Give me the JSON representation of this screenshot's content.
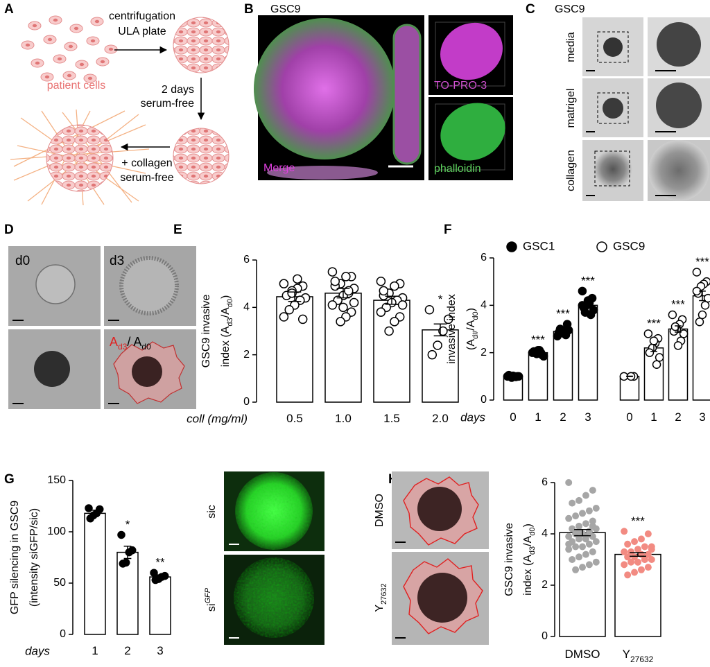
{
  "panel_labels": [
    "A",
    "B",
    "C",
    "D",
    "E",
    "F",
    "G",
    "H"
  ],
  "panel_a": {
    "step1": [
      "centrifugation",
      "ULA plate"
    ],
    "cells": "patient cells",
    "step2": [
      "2 days",
      "serum-free"
    ],
    "step3": [
      "+ collagen",
      "serum-free"
    ]
  },
  "panel_b": {
    "title": "GSC9",
    "merge": "Merge",
    "to_pro": "TO-PRO-3",
    "phalloidin": "phalloidin"
  },
  "panel_c": {
    "title": "GSC9",
    "rows": [
      "media",
      "matrigel",
      "collagen"
    ]
  },
  "panel_d": {
    "day0": "d0",
    "day3": "d3",
    "ratio": [
      "A",
      "d3",
      "/ A",
      "d0"
    ]
  },
  "panel_g_images": {
    "control": "sic",
    "silenced": [
      "si",
      "GFP"
    ]
  },
  "panel_h_images": {
    "control": "DMSO",
    "treated": [
      "Y",
      "27632"
    ]
  },
  "chart_data": [
    {
      "type": "bar",
      "y_label": "GSC9 invasive",
      "y_label_2": [
        "index (A",
        "d3",
        "/A",
        "d0",
        ")"
      ],
      "x_label": "coll (mg/ml)",
      "categories": [
        "0.5",
        "1.0",
        "1.5",
        "2.0"
      ],
      "ylim": [
        0,
        6
      ],
      "yticks": [
        0,
        2,
        4,
        6
      ],
      "series": [
        {
          "color": "#ffffff",
          "point_color": "#ffffff",
          "point_stroke": "#000000",
          "values": [
            4.45,
            4.6,
            4.3,
            3.05
          ],
          "errors": [
            0.2,
            0.2,
            0.17,
            0.25
          ],
          "annotations": [
            null,
            null,
            null,
            "*"
          ],
          "points": [
            [
              5.0,
              4.9,
              4.8,
              4.7,
              4.5,
              4.4,
              4.3,
              4.1,
              3.9,
              3.6,
              3.5,
              5.2,
              4.6
            ],
            [
              5.5,
              5.3,
              5.3,
              5.0,
              4.9,
              4.8,
              4.6,
              4.5,
              4.3,
              4.1,
              3.8,
              3.6,
              3.4,
              5.1,
              4.2,
              4.7,
              4.0
            ],
            [
              5.1,
              5.0,
              4.9,
              4.6,
              4.5,
              4.4,
              4.3,
              4.2,
              4.0,
              3.8,
              3.6,
              3.4,
              3.0,
              4.7,
              4.1
            ],
            [
              3.9,
              3.5,
              3.0,
              2.4,
              2.0
            ]
          ]
        }
      ]
    },
    {
      "type": "bar",
      "y_label": "invasive index",
      "y_label_2": [
        "(A",
        "d#",
        "/A",
        "d0",
        ")"
      ],
      "x_label": "days",
      "categories": [
        "0",
        "1",
        "2",
        "3"
      ],
      "ylim": [
        0,
        6
      ],
      "yticks": [
        0,
        2,
        4,
        6
      ],
      "series": [
        {
          "name": "GSC1",
          "color": "#ffffff",
          "point_color": "#000000",
          "point_stroke": "#000000",
          "values": [
            1,
            2,
            2.9,
            4.0
          ],
          "errors": [
            0.01,
            0.04,
            0.05,
            0.1
          ],
          "annotations": [
            null,
            "***",
            "***",
            "***"
          ],
          "points": [
            [
              1,
              1,
              1,
              0.95,
              1.05,
              1,
              0.98,
              1.02,
              1
            ],
            [
              2.0,
              1.9,
              2.1,
              1.95,
              2.05,
              1.85,
              2.0,
              2.1
            ],
            [
              2.7,
              3.2,
              2.8,
              2.9,
              2.85,
              2.95,
              2.75,
              2.9,
              3.0
            ],
            [
              4.6,
              4.3,
              4.1,
              4.0,
              3.9,
              3.8,
              3.6,
              4.2,
              3.7,
              4.0
            ]
          ]
        },
        {
          "name": "GSC9",
          "color": "#ffffff",
          "point_color": "#ffffff",
          "point_stroke": "#000000",
          "values": [
            1,
            2.2,
            3.0,
            4.4
          ],
          "errors": [
            0.01,
            0.15,
            0.13,
            0.2
          ],
          "annotations": [
            null,
            "***",
            "***",
            "***"
          ],
          "points": [
            [
              1,
              1,
              1
            ],
            [
              2.8,
              2.6,
              2.4,
              2.2,
              2.0,
              1.8,
              1.5,
              2.5
            ],
            [
              3.6,
              3.4,
              3.2,
              3.0,
              2.9,
              2.8,
              2.5,
              2.3,
              3.1
            ],
            [
              5.4,
              5.0,
              4.9,
              4.8,
              4.5,
              4.3,
              4.0,
              3.6,
              3.3,
              4.6
            ]
          ]
        }
      ]
    },
    {
      "type": "bar",
      "y_label": "GFP silencing in GSC9",
      "y_label_2": [
        "(intensity siGFP/sic)"
      ],
      "x_label": "days",
      "categories": [
        "1",
        "2",
        "3"
      ],
      "ylim": [
        0,
        150
      ],
      "yticks": [
        0,
        50,
        100,
        150
      ],
      "series": [
        {
          "color": "#ffffff",
          "point_color": "#000000",
          "point_stroke": "#000000",
          "values": [
            118,
            80,
            56
          ],
          "errors": [
            3,
            6,
            2
          ],
          "annotations": [
            null,
            "*",
            "**"
          ],
          "points": [
            [
              123,
              122,
              118,
              116,
              113
            ],
            [
              97,
              82,
              80,
              70,
              69
            ],
            [
              60,
              57,
              56,
              54,
              53
            ]
          ]
        }
      ]
    },
    {
      "type": "bar",
      "y_label": "GSC9 invasive",
      "y_label_2": [
        "index (A",
        "d3",
        "/A",
        "d0",
        ")"
      ],
      "categories": [
        "DMSO",
        "Y"
      ],
      "category_subscripts": [
        null,
        "27632"
      ],
      "ylim": [
        0,
        6
      ],
      "yticks": [
        0,
        2,
        4,
        6
      ],
      "series": [
        {
          "color": "#ffffff",
          "point_color": [
            "#a6a6a6",
            "#f28b82"
          ],
          "values": [
            4.05,
            3.2
          ],
          "errors": [
            0.12,
            0.07
          ],
          "annotations": [
            null,
            "***"
          ],
          "points": [
            [
              6.0,
              5.7,
              5.5,
              5.3,
              5.2,
              5.0,
              4.9,
              4.8,
              4.7,
              4.6,
              4.5,
              4.4,
              4.3,
              4.2,
              4.2,
              4.1,
              4.0,
              4.0,
              3.9,
              3.9,
              3.8,
              3.8,
              3.7,
              3.7,
              3.6,
              3.5,
              3.5,
              3.4,
              3.3,
              3.2,
              3.1,
              3.0,
              2.9,
              2.8,
              2.7,
              2.6,
              3.6,
              4.3,
              3.9,
              4.1
            ],
            [
              4.1,
              4.0,
              3.8,
              3.7,
              3.6,
              3.5,
              3.5,
              3.4,
              3.3,
              3.3,
              3.2,
              3.2,
              3.1,
              3.1,
              3.0,
              3.0,
              2.9,
              2.9,
              2.8,
              2.7,
              2.6,
              2.5,
              2.4,
              3.4,
              3.0,
              2.9
            ]
          ]
        }
      ]
    }
  ]
}
